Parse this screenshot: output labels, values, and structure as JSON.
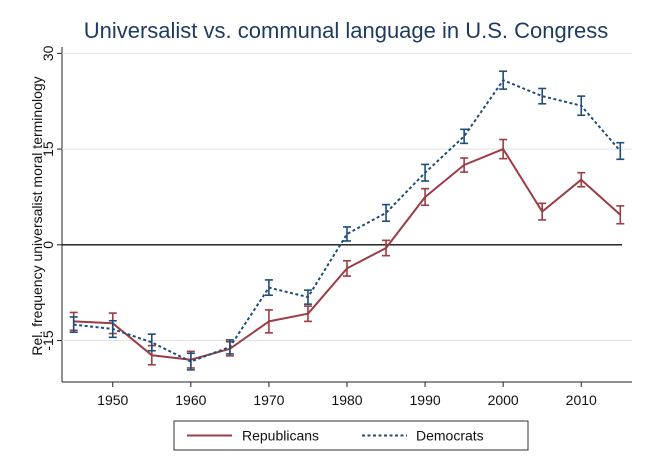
{
  "chart_data": {
    "type": "line",
    "title": "Universalist vs. communal language in U.S. Congress",
    "xlabel": "",
    "ylabel": "Rel. frequency universalist moral terminology",
    "x": [
      1945,
      1950,
      1955,
      1960,
      1965,
      1970,
      1975,
      1980,
      1985,
      1990,
      1995,
      2000,
      2005,
      2010,
      2015
    ],
    "xticks": [
      1950,
      1960,
      1970,
      1980,
      1990,
      2000,
      2010
    ],
    "xticks_labels": [
      "1950",
      "1960",
      "1970",
      "1980",
      "1990",
      "2000",
      "2010"
    ],
    "yticks": [
      -15,
      0,
      15,
      30
    ],
    "yticks_labels": [
      "-15",
      "0",
      "15",
      "30"
    ],
    "xlim": [
      1943.5,
      2016.5
    ],
    "ylim": [
      -21.5,
      31
    ],
    "grid": true,
    "reference_line": 0,
    "legend_position": "bottom",
    "series": [
      {
        "name": "Republicans",
        "color": "#9b3d44",
        "style": "solid",
        "values": [
          -12.0,
          -12.3,
          -17.3,
          -18.0,
          -16.3,
          -12.0,
          -10.8,
          -3.7,
          -0.5,
          7.5,
          12.5,
          15.0,
          5.2,
          10.2,
          4.7
        ],
        "err": [
          1.4,
          1.6,
          1.5,
          1.3,
          1.1,
          1.8,
          1.2,
          1.2,
          1.2,
          1.3,
          1.1,
          1.5,
          1.3,
          1.1,
          1.4
        ]
      },
      {
        "name": "Democrats",
        "color": "#1f4e79",
        "style": "dashed",
        "values": [
          -12.5,
          -13.2,
          -15.3,
          -18.3,
          -16.0,
          -6.7,
          -8.2,
          1.7,
          5.0,
          11.3,
          17.0,
          25.8,
          23.3,
          21.8,
          14.7
        ],
        "err": [
          1.2,
          1.3,
          1.3,
          1.3,
          1.1,
          1.2,
          1.1,
          1.1,
          1.3,
          1.3,
          1.1,
          1.4,
          1.2,
          1.5,
          1.3
        ]
      }
    ]
  }
}
